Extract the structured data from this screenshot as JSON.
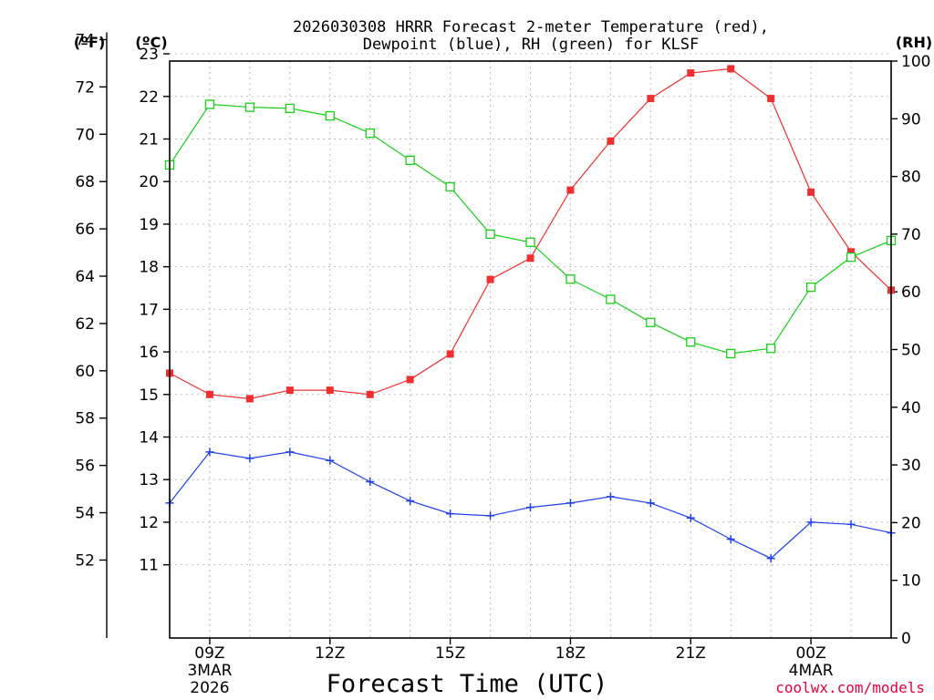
{
  "chart_data": {
    "type": "line",
    "title": "2026030308 HRRR Forecast 2-meter Temperature (red),",
    "title_line2": "Dewpoint (blue), RH (green) for KLSF",
    "xlabel": "Forecast Time (UTC)",
    "credit": "coolwx.com/models",
    "left_outer_unit": "(ºF)",
    "left_inner_unit": "(ºC)",
    "right_unit": "(RH)",
    "x_hours": [
      8,
      9,
      10,
      11,
      12,
      13,
      14,
      15,
      16,
      17,
      18,
      19,
      20,
      21,
      22,
      23,
      24,
      25,
      26
    ],
    "xlim": [
      8,
      26
    ],
    "x_ticks": [
      {
        "hour": 9,
        "label": "09Z",
        "sub1": "3MAR",
        "sub2": "2026"
      },
      {
        "hour": 12,
        "label": "12Z",
        "sub1": "",
        "sub2": ""
      },
      {
        "hour": 15,
        "label": "15Z",
        "sub1": "",
        "sub2": ""
      },
      {
        "hour": 18,
        "label": "18Z",
        "sub1": "",
        "sub2": ""
      },
      {
        "hour": 21,
        "label": "21Z",
        "sub1": "",
        "sub2": ""
      },
      {
        "hour": 24,
        "label": "00Z",
        "sub1": "4MAR",
        "sub2": ""
      }
    ],
    "ylim_c": [
      9.28,
      22.83
    ],
    "y_ticks_c": [
      11,
      12,
      13,
      14,
      15,
      16,
      17,
      18,
      19,
      20,
      21,
      22,
      23
    ],
    "y_ticks_f": [
      52,
      54,
      56,
      58,
      60,
      62,
      64,
      66,
      68,
      70,
      72,
      74
    ],
    "ylim_rh": [
      0,
      100
    ],
    "y_ticks_rh": [
      0,
      10,
      20,
      30,
      40,
      50,
      60,
      70,
      80,
      90,
      100
    ],
    "series": [
      {
        "name": "Temperature",
        "color": "#f03030",
        "marker": "filled-square",
        "axis": "c",
        "values": [
          15.5,
          15.0,
          14.9,
          15.1,
          15.1,
          15.0,
          15.35,
          15.95,
          17.7,
          18.2,
          19.8,
          20.95,
          21.95,
          22.55,
          22.65,
          21.95,
          19.75,
          18.35,
          17.45
        ]
      },
      {
        "name": "Dewpoint",
        "color": "#2040f0",
        "marker": "plus",
        "axis": "c",
        "values": [
          12.45,
          13.65,
          13.5,
          13.65,
          13.45,
          12.95,
          12.5,
          12.2,
          12.15,
          12.35,
          12.45,
          12.6,
          12.45,
          12.1,
          11.6,
          11.15,
          12.0,
          11.95,
          11.75
        ]
      },
      {
        "name": "RH",
        "color": "#18d018",
        "marker": "open-square",
        "axis": "rh",
        "values": [
          82,
          92.5,
          92,
          91.8,
          90.5,
          87.5,
          82.8,
          78.2,
          70,
          68.6,
          62.2,
          58.7,
          54.7,
          51.3,
          49.3,
          50.2,
          60.8,
          66,
          68.9
        ]
      }
    ]
  }
}
